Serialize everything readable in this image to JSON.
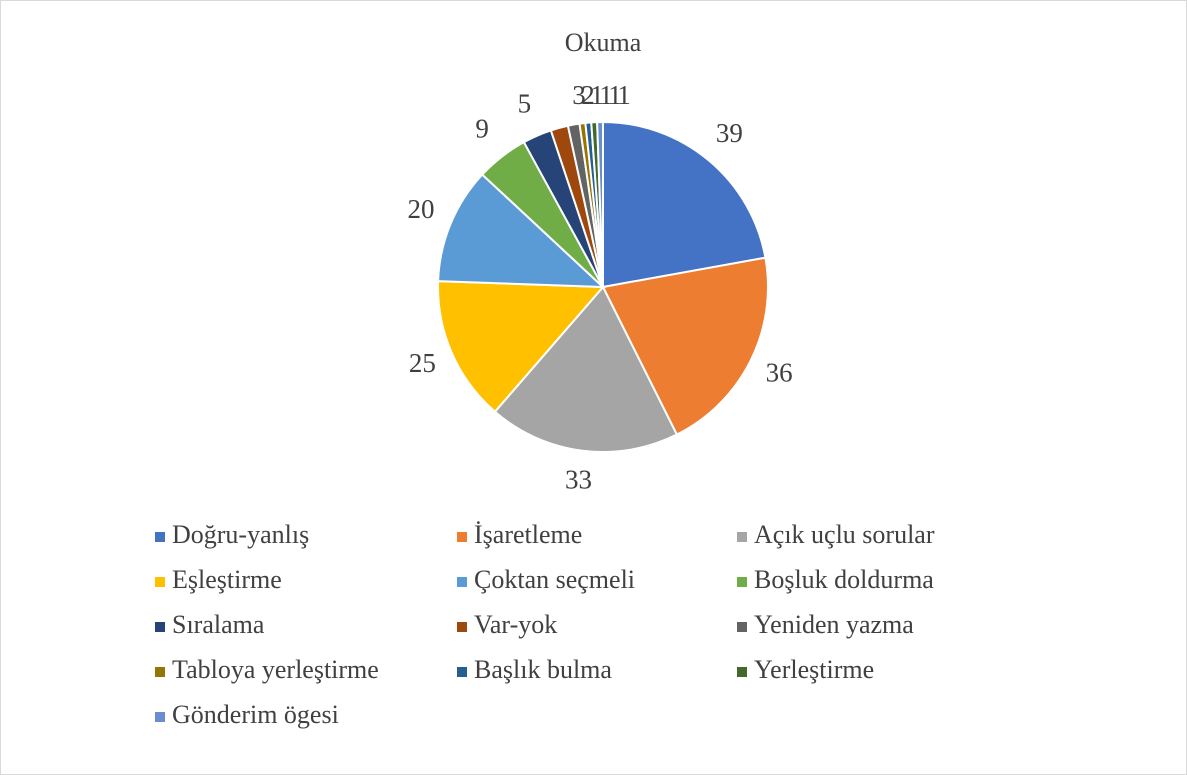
{
  "chart_data": {
    "type": "pie",
    "title": "Okuma",
    "categories": [
      "Doğru-yanlış",
      "İşaretleme",
      "Açık uçlu sorular",
      "Eşleştirme",
      "Çoktan seçmeli",
      "Boşluk doldurma",
      "Sıralama",
      "Var-yok",
      "Yeniden yazma",
      "Tabloya yerleştirme",
      "Başlık bulma",
      "Yerleştirme",
      "Gönderim ögesi"
    ],
    "values": [
      39,
      36,
      33,
      25,
      20,
      9,
      5,
      3,
      2,
      1,
      1,
      1,
      1
    ],
    "colors": [
      "#4472c4",
      "#ed7d31",
      "#a5a5a5",
      "#ffc000",
      "#5b9bd5",
      "#70ad47",
      "#264478",
      "#9e480e",
      "#636363",
      "#997300",
      "#255e91",
      "#43682b",
      "#698ed0"
    ],
    "legend": "bottom"
  }
}
